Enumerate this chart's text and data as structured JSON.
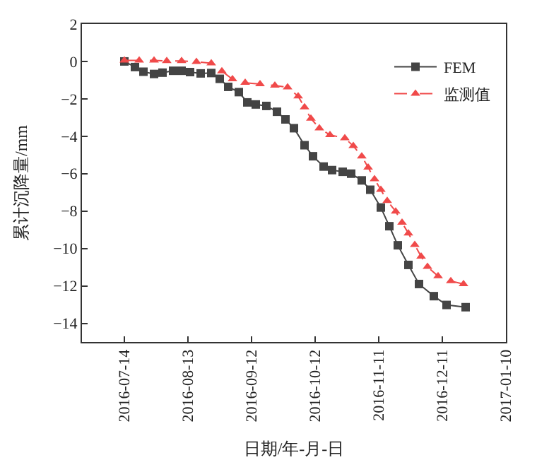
{
  "chart_data": {
    "type": "line",
    "xlabel": "日期/年-月-日",
    "ylabel": "累计沉降量/mm",
    "xlim": [
      "2016-06-24",
      "2017-01-10"
    ],
    "xticks": [
      "2016-07-14",
      "2016-08-13",
      "2016-09-12",
      "2016-10-12",
      "2016-11-11",
      "2016-12-11",
      "2017-01-10"
    ],
    "ylim": [
      -15,
      2
    ],
    "yticks": [
      -14,
      -12,
      -10,
      -8,
      -6,
      -4,
      -2,
      0,
      2
    ],
    "legend": "top right",
    "series": [
      {
        "name": "FEM",
        "color": "#444444",
        "marker": "square",
        "line_style": "solid",
        "x": [
          "2016-07-14",
          "2016-07-19",
          "2016-07-23",
          "2016-07-28",
          "2016-08-01",
          "2016-08-06",
          "2016-08-10",
          "2016-08-14",
          "2016-08-19",
          "2016-08-24",
          "2016-08-28",
          "2016-09-01",
          "2016-09-06",
          "2016-09-10",
          "2016-09-14",
          "2016-09-19",
          "2016-09-24",
          "2016-09-28",
          "2016-10-02",
          "2016-10-07",
          "2016-10-11",
          "2016-10-16",
          "2016-10-20",
          "2016-10-25",
          "2016-10-29",
          "2016-11-03",
          "2016-11-07",
          "2016-11-12",
          "2016-11-16",
          "2016-11-20",
          "2016-11-25",
          "2016-11-30",
          "2016-12-07",
          "2016-12-13",
          "2016-12-22"
        ],
        "values": [
          0,
          -0.3,
          -0.55,
          -0.67,
          -0.6,
          -0.5,
          -0.5,
          -0.57,
          -0.64,
          -0.62,
          -0.93,
          -1.36,
          -1.64,
          -2.19,
          -2.3,
          -2.38,
          -2.69,
          -3.1,
          -3.57,
          -4.48,
          -5.07,
          -5.62,
          -5.81,
          -5.9,
          -6.0,
          -6.36,
          -6.86,
          -7.81,
          -8.81,
          -9.83,
          -10.88,
          -11.9,
          -12.55,
          -13.02,
          -13.14
        ]
      },
      {
        "name": "监测值",
        "color": "#f04a4a",
        "marker": "triangle",
        "line_style": "dashed",
        "x": [
          "2016-07-14",
          "2016-07-21",
          "2016-07-28",
          "2016-08-03",
          "2016-08-10",
          "2016-08-17",
          "2016-08-24",
          "2016-08-29",
          "2016-09-03",
          "2016-09-09",
          "2016-09-16",
          "2016-09-23",
          "2016-09-29",
          "2016-10-04",
          "2016-10-07",
          "2016-10-10",
          "2016-10-14",
          "2016-10-19",
          "2016-10-26",
          "2016-10-30",
          "2016-11-03",
          "2016-11-06",
          "2016-11-09",
          "2016-11-12",
          "2016-11-15",
          "2016-11-19",
          "2016-11-22",
          "2016-11-25",
          "2016-11-28",
          "2016-12-01",
          "2016-12-04",
          "2016-12-09",
          "2016-12-15",
          "2016-12-21"
        ],
        "values": [
          0.05,
          0.05,
          0.05,
          0.03,
          0.03,
          -0.02,
          -0.1,
          -0.52,
          -0.95,
          -1.14,
          -1.21,
          -1.29,
          -1.38,
          -1.86,
          -2.45,
          -3.05,
          -3.57,
          -3.93,
          -4.1,
          -4.52,
          -5.07,
          -5.67,
          -6.29,
          -6.86,
          -7.45,
          -8.02,
          -8.62,
          -9.19,
          -9.81,
          -10.43,
          -10.98,
          -11.48,
          -11.74,
          -11.9
        ]
      }
    ]
  }
}
